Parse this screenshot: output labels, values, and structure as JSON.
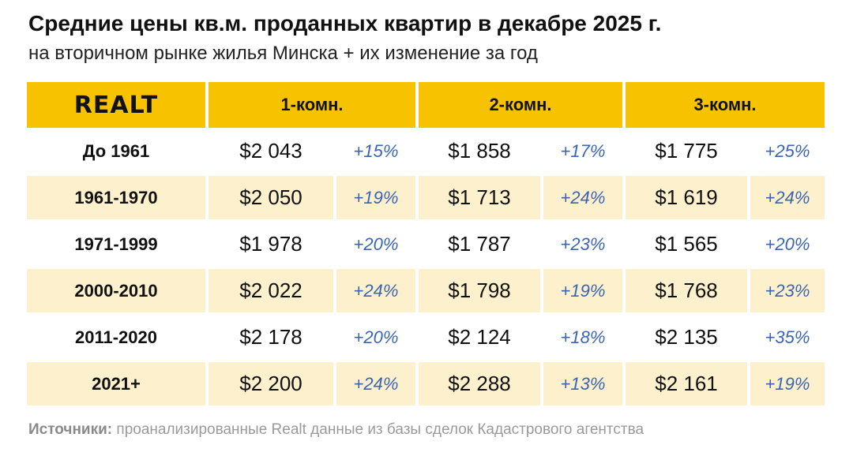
{
  "header": {
    "title": "Средние цены кв.м. проданных квартир в декабре 2025 г.",
    "subtitle": "на вторичном рынке жилья Минска + их изменение за год"
  },
  "chart_data": {
    "type": "table",
    "logo_text": "REALT",
    "columns": [
      "1-комн.",
      "2-комн.",
      "3-комн."
    ],
    "rows": [
      {
        "period": "До 1961",
        "values": [
          {
            "price": "$2 043",
            "change": "+15%"
          },
          {
            "price": "$1 858",
            "change": "+17%"
          },
          {
            "price": "$1 775",
            "change": "+25%"
          }
        ]
      },
      {
        "period": "1961-1970",
        "values": [
          {
            "price": "$2 050",
            "change": "+19%"
          },
          {
            "price": "$1 713",
            "change": "+24%"
          },
          {
            "price": "$1 619",
            "change": "+24%"
          }
        ]
      },
      {
        "period": "1971-1999",
        "values": [
          {
            "price": "$1 978",
            "change": "+20%"
          },
          {
            "price": "$1 787",
            "change": "+23%"
          },
          {
            "price": "$1 565",
            "change": "+20%"
          }
        ]
      },
      {
        "period": "2000-2010",
        "values": [
          {
            "price": "$2 022",
            "change": "+24%"
          },
          {
            "price": "$1 798",
            "change": "+19%"
          },
          {
            "price": "$1 768",
            "change": "+23%"
          }
        ]
      },
      {
        "period": "2011-2020",
        "values": [
          {
            "price": "$2 178",
            "change": "+20%"
          },
          {
            "price": "$2 124",
            "change": "+18%"
          },
          {
            "price": "$2 135",
            "change": "+35%"
          }
        ]
      },
      {
        "period": "2021+",
        "values": [
          {
            "price": "$2 200",
            "change": "+24%"
          },
          {
            "price": "$2 288",
            "change": "+13%"
          },
          {
            "price": "$2 161",
            "change": "+19%"
          }
        ]
      }
    ],
    "colors": {
      "header_bg": "#f7c300",
      "stripe_bg": "#fdf0cc",
      "change_text": "#3a64b8"
    }
  },
  "footer": {
    "source_label": "Источники:",
    "source_text": " проанализированные Realt данные из базы сделок Кадастрового агентства"
  }
}
